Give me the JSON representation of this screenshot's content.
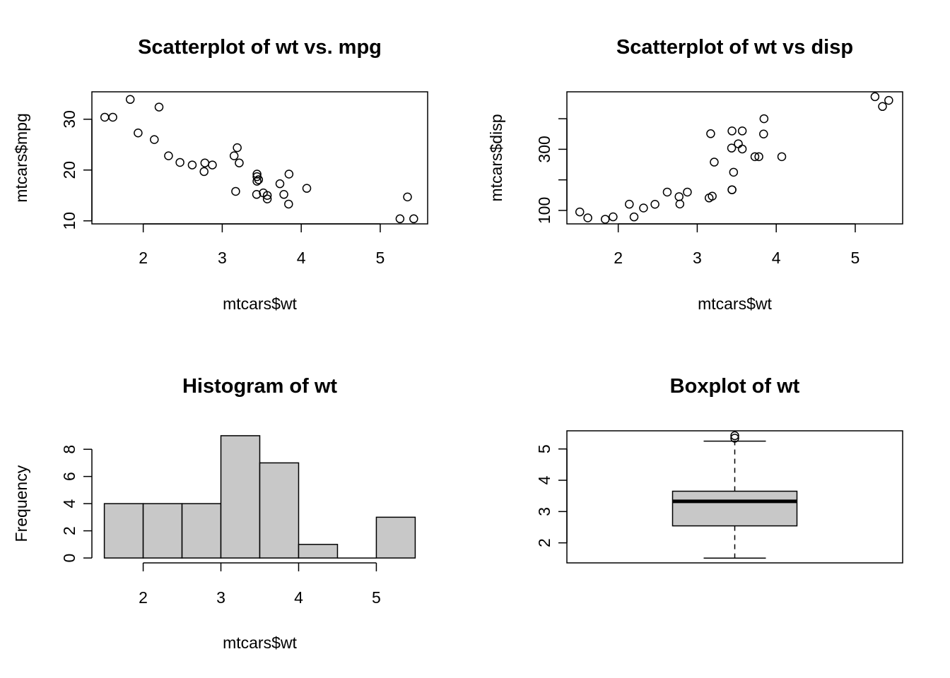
{
  "chart_data": [
    {
      "type": "scatter",
      "title": "Scatterplot of wt vs. mpg",
      "xlabel": "mtcars$wt",
      "ylabel": "mtcars$mpg",
      "xlim": [
        1.35,
        5.6
      ],
      "ylim": [
        9.4,
        35.4
      ],
      "xticks": [
        2,
        3,
        4,
        5
      ],
      "yticks": [
        10,
        20,
        30
      ],
      "points": [
        {
          "x": 2.62,
          "y": 21.0
        },
        {
          "x": 2.875,
          "y": 21.0
        },
        {
          "x": 2.32,
          "y": 22.8
        },
        {
          "x": 3.215,
          "y": 21.4
        },
        {
          "x": 3.44,
          "y": 18.7
        },
        {
          "x": 3.46,
          "y": 18.1
        },
        {
          "x": 3.57,
          "y": 14.3
        },
        {
          "x": 3.19,
          "y": 24.4
        },
        {
          "x": 3.15,
          "y": 22.8
        },
        {
          "x": 3.44,
          "y": 19.2
        },
        {
          "x": 3.44,
          "y": 17.8
        },
        {
          "x": 4.07,
          "y": 16.4
        },
        {
          "x": 3.73,
          "y": 17.3
        },
        {
          "x": 3.78,
          "y": 15.2
        },
        {
          "x": 5.25,
          "y": 10.4
        },
        {
          "x": 5.424,
          "y": 10.4
        },
        {
          "x": 5.345,
          "y": 14.7
        },
        {
          "x": 2.2,
          "y": 32.4
        },
        {
          "x": 1.615,
          "y": 30.4
        },
        {
          "x": 1.835,
          "y": 33.9
        },
        {
          "x": 2.465,
          "y": 21.5
        },
        {
          "x": 3.52,
          "y": 15.5
        },
        {
          "x": 3.435,
          "y": 15.2
        },
        {
          "x": 3.84,
          "y": 13.3
        },
        {
          "x": 3.845,
          "y": 19.2
        },
        {
          "x": 1.935,
          "y": 27.3
        },
        {
          "x": 2.14,
          "y": 26.0
        },
        {
          "x": 1.513,
          "y": 30.4
        },
        {
          "x": 3.17,
          "y": 15.8
        },
        {
          "x": 2.77,
          "y": 19.7
        },
        {
          "x": 3.57,
          "y": 15.0
        },
        {
          "x": 2.78,
          "y": 21.4
        }
      ]
    },
    {
      "type": "scatter",
      "title": "Scatterplot of wt vs disp",
      "xlabel": "mtcars$wt",
      "ylabel": "mtcars$disp",
      "xlim": [
        1.35,
        5.6
      ],
      "ylim": [
        56,
        488
      ],
      "xticks": [
        2,
        3,
        4,
        5
      ],
      "yticks": [
        100,
        200,
        300,
        400
      ],
      "ytick_labels": [
        "100",
        "",
        "300",
        ""
      ],
      "points": [
        {
          "x": 2.62,
          "y": 160
        },
        {
          "x": 2.875,
          "y": 160
        },
        {
          "x": 2.32,
          "y": 108
        },
        {
          "x": 3.215,
          "y": 258
        },
        {
          "x": 3.44,
          "y": 360
        },
        {
          "x": 3.46,
          "y": 225
        },
        {
          "x": 3.57,
          "y": 360
        },
        {
          "x": 3.19,
          "y": 146.7
        },
        {
          "x": 3.15,
          "y": 140.8
        },
        {
          "x": 3.44,
          "y": 167.6
        },
        {
          "x": 3.44,
          "y": 167.6
        },
        {
          "x": 4.07,
          "y": 275.8
        },
        {
          "x": 3.73,
          "y": 275.8
        },
        {
          "x": 3.78,
          "y": 275.8
        },
        {
          "x": 5.25,
          "y": 472
        },
        {
          "x": 5.424,
          "y": 460
        },
        {
          "x": 5.345,
          "y": 440
        },
        {
          "x": 2.2,
          "y": 78.7
        },
        {
          "x": 1.615,
          "y": 75.7
        },
        {
          "x": 1.835,
          "y": 71.1
        },
        {
          "x": 2.465,
          "y": 120.1
        },
        {
          "x": 3.52,
          "y": 318
        },
        {
          "x": 3.435,
          "y": 304
        },
        {
          "x": 3.84,
          "y": 350
        },
        {
          "x": 3.845,
          "y": 400
        },
        {
          "x": 1.935,
          "y": 79
        },
        {
          "x": 2.14,
          "y": 120.3
        },
        {
          "x": 1.513,
          "y": 95.1
        },
        {
          "x": 3.17,
          "y": 351
        },
        {
          "x": 2.77,
          "y": 145
        },
        {
          "x": 3.57,
          "y": 301
        },
        {
          "x": 2.78,
          "y": 121
        }
      ]
    },
    {
      "type": "bar",
      "subtype": "histogram",
      "title": "Histogram of wt",
      "xlabel": "mtcars$wt",
      "ylabel": "Frequency",
      "xlim": [
        1.34,
        5.66
      ],
      "ylim": [
        -0.36,
        9.36
      ],
      "xticks": [
        2,
        3,
        4,
        5
      ],
      "yticks": [
        0,
        2,
        4,
        6,
        8
      ],
      "bins": [
        {
          "x0": 1.5,
          "x1": 2.0,
          "count": 4
        },
        {
          "x0": 2.0,
          "x1": 2.5,
          "count": 4
        },
        {
          "x0": 2.5,
          "x1": 3.0,
          "count": 4
        },
        {
          "x0": 3.0,
          "x1": 3.5,
          "count": 9
        },
        {
          "x0": 3.5,
          "x1": 4.0,
          "count": 7
        },
        {
          "x0": 4.0,
          "x1": 4.5,
          "count": 1
        },
        {
          "x0": 4.5,
          "x1": 5.0,
          "count": 0
        },
        {
          "x0": 5.0,
          "x1": 5.5,
          "count": 3
        }
      ],
      "fill": "#c8c8c8"
    },
    {
      "type": "box",
      "title": "Boxplot of wt",
      "ylim": [
        1.36,
        5.58
      ],
      "yticks": [
        2,
        3,
        4,
        5
      ],
      "lower_whisker": 1.513,
      "q1": 2.5425,
      "median": 3.325,
      "q3": 3.65,
      "upper_whisker": 5.25,
      "outliers": [
        5.424,
        5.345
      ],
      "fill": "#c8c8c8"
    }
  ]
}
